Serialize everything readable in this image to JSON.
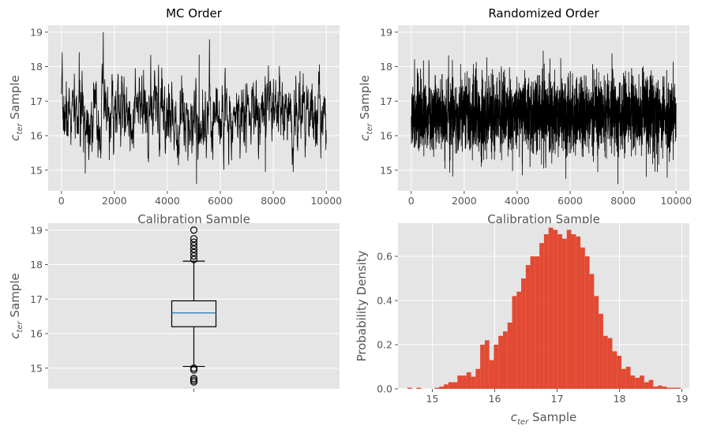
{
  "chart_data": [
    {
      "type": "line",
      "title": "MC Order",
      "xlabel": "Calibration Sample",
      "ylabel_main": "c",
      "ylabel_sub": "ter",
      "ylabel_rest": " Sample",
      "xlim": [
        -500,
        10500
      ],
      "ylim": [
        14.4,
        19.2
      ],
      "xticks": [
        0,
        2000,
        4000,
        6000,
        8000,
        10000
      ],
      "xtick_labels": [
        "0",
        "2000",
        "4000",
        "6000",
        "8000",
        "10000"
      ],
      "yticks": [
        15,
        16,
        17,
        18,
        19
      ],
      "ytick_labels": [
        "15",
        "16",
        "17",
        "18",
        "19"
      ],
      "grid": true,
      "line_color": "#000000",
      "n_samples": 10000,
      "mean": 16.6,
      "std": 0.55,
      "min": 14.6,
      "max": 19.0,
      "notable_points": [
        {
          "x": 1580,
          "y": 19.0
        },
        {
          "x": 5100,
          "y": 14.6
        },
        {
          "x": 5200,
          "y": 18.35
        },
        {
          "x": 7700,
          "y": 14.95
        },
        {
          "x": 900,
          "y": 14.9
        }
      ]
    },
    {
      "type": "line",
      "title": "Randomized Order",
      "xlabel": "Calibration Sample",
      "ylabel_main": "c",
      "ylabel_sub": "ter",
      "ylabel_rest": " Sample",
      "xlim": [
        -500,
        10500
      ],
      "ylim": [
        14.4,
        19.2
      ],
      "xticks": [
        0,
        2000,
        4000,
        6000,
        8000,
        10000
      ],
      "xtick_labels": [
        "0",
        "2000",
        "4000",
        "6000",
        "8000",
        "10000"
      ],
      "yticks": [
        15,
        16,
        17,
        18,
        19
      ],
      "ytick_labels": [
        "15",
        "16",
        "17",
        "18",
        "19"
      ],
      "grid": true,
      "line_color": "#000000",
      "n_samples": 10000,
      "mean": 16.6,
      "std": 0.55,
      "min": 14.6,
      "max": 19.0
    },
    {
      "type": "box",
      "ylabel_main": "c",
      "ylabel_sub": "ter",
      "ylabel_rest": " Sample",
      "ylim": [
        14.4,
        19.2
      ],
      "yticks": [
        15,
        16,
        17,
        18,
        19
      ],
      "ytick_labels": [
        "15",
        "16",
        "17",
        "18",
        "19"
      ],
      "grid": true,
      "q1": 16.2,
      "median": 16.6,
      "q3": 16.95,
      "whisker_low": 15.05,
      "whisker_high": 18.1,
      "outliers_low": [
        15.0,
        14.95,
        14.7,
        14.65,
        14.6
      ],
      "outliers_high": [
        18.15,
        18.25,
        18.35,
        18.45,
        18.55,
        18.65,
        18.75,
        19.0
      ],
      "box_color": "#000000",
      "median_color": "#1f77b4"
    },
    {
      "type": "bar",
      "subtype": "histogram",
      "xlabel_main": "c",
      "xlabel_sub": "ter",
      "xlabel_rest": " Sample",
      "ylabel": "Probability Density",
      "xlim": [
        14.45,
        19.12
      ],
      "ylim": [
        0,
        0.75
      ],
      "xticks": [
        15,
        16,
        17,
        18,
        19
      ],
      "xtick_labels": [
        "15",
        "16",
        "17",
        "18",
        "19"
      ],
      "yticks": [
        0.0,
        0.2,
        0.4,
        0.6
      ],
      "ytick_labels": [
        "0.0",
        "0.2",
        "0.4",
        "0.6"
      ],
      "grid": true,
      "bar_color": "#e24a33",
      "bin_start": 14.6,
      "bin_width": 0.073,
      "values": [
        0.005,
        0.0,
        0.005,
        0.0,
        0.0,
        0.0,
        0.005,
        0.01,
        0.02,
        0.03,
        0.03,
        0.06,
        0.06,
        0.075,
        0.055,
        0.09,
        0.2,
        0.22,
        0.13,
        0.2,
        0.24,
        0.26,
        0.3,
        0.42,
        0.44,
        0.5,
        0.56,
        0.6,
        0.6,
        0.66,
        0.7,
        0.73,
        0.72,
        0.7,
        0.68,
        0.72,
        0.7,
        0.69,
        0.64,
        0.6,
        0.52,
        0.42,
        0.34,
        0.24,
        0.23,
        0.17,
        0.15,
        0.09,
        0.1,
        0.06,
        0.05,
        0.06,
        0.03,
        0.04,
        0.01,
        0.015,
        0.01,
        0.005,
        0.005,
        0.005,
        0.0,
        0.0,
        0.0,
        0.0,
        0.0,
        0.0,
        0.005
      ]
    }
  ]
}
